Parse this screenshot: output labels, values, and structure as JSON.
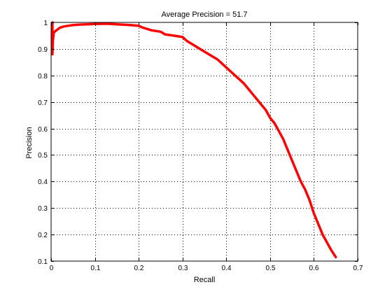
{
  "chart_data": {
    "type": "line",
    "title": "Average Precision = 51.7",
    "xlabel": "Recall",
    "ylabel": "Precision",
    "xlim": [
      0,
      0.7
    ],
    "ylim": [
      0.1,
      1
    ],
    "xticks": [
      0,
      0.1,
      0.2,
      0.3,
      0.4,
      0.5,
      0.6,
      0.7
    ],
    "xtick_labels": [
      "0",
      "0.1",
      "0.2",
      "0.3",
      "0.4",
      "0.5",
      "0.6",
      "0.7"
    ],
    "yticks": [
      0.1,
      0.2,
      0.3,
      0.4,
      0.5,
      0.6,
      0.7,
      0.8,
      0.9,
      1
    ],
    "ytick_labels": [
      "0.1",
      "0.2",
      "0.3",
      "0.4",
      "0.5",
      "0.6",
      "0.7",
      "0.8",
      "0.9",
      "1"
    ],
    "grid": true,
    "box": true,
    "series": [
      {
        "color": "#ff0000",
        "x": [
          0.003,
          0.003,
          0.004,
          0.006,
          0.008,
          0.012,
          0.02,
          0.03,
          0.05,
          0.07,
          0.1,
          0.13,
          0.15,
          0.18,
          0.2,
          0.21,
          0.23,
          0.25,
          0.26,
          0.28,
          0.3,
          0.31,
          0.33,
          0.35,
          0.37,
          0.38,
          0.4,
          0.42,
          0.44,
          0.45,
          0.46,
          0.47,
          0.48,
          0.49,
          0.5,
          0.51,
          0.52,
          0.53,
          0.54,
          0.55,
          0.56,
          0.57,
          0.58,
          0.59,
          0.6,
          0.61,
          0.62,
          0.63,
          0.64,
          0.65
        ],
        "y": [
          1.0,
          0.88,
          0.93,
          0.96,
          0.965,
          0.97,
          0.98,
          0.985,
          0.99,
          0.992,
          0.994,
          0.995,
          0.993,
          0.99,
          0.987,
          0.98,
          0.97,
          0.965,
          0.955,
          0.95,
          0.945,
          0.93,
          0.91,
          0.89,
          0.87,
          0.86,
          0.83,
          0.8,
          0.77,
          0.75,
          0.73,
          0.71,
          0.69,
          0.67,
          0.64,
          0.62,
          0.59,
          0.56,
          0.52,
          0.48,
          0.44,
          0.4,
          0.37,
          0.33,
          0.28,
          0.24,
          0.2,
          0.17,
          0.14,
          0.115
        ]
      }
    ]
  }
}
